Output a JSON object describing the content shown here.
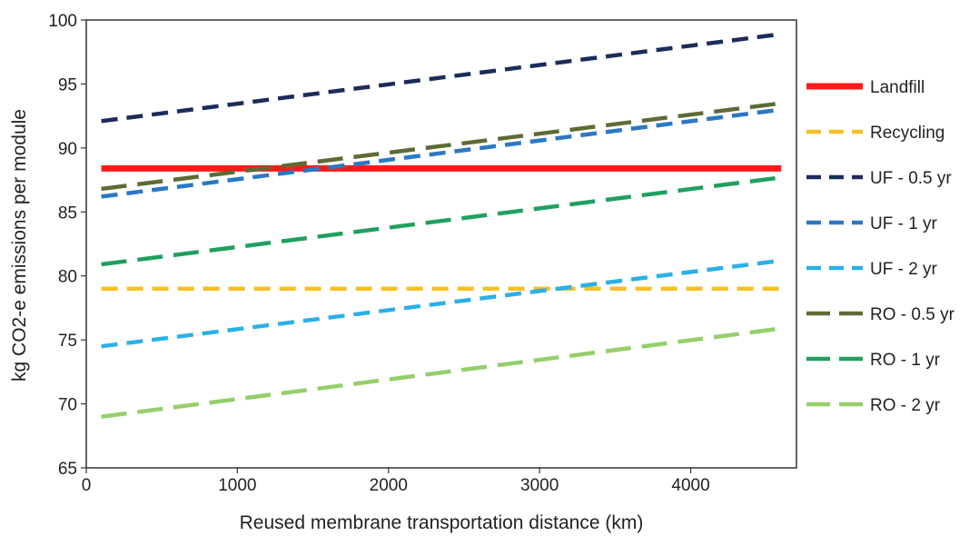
{
  "chart_data": {
    "type": "line",
    "title": "",
    "xlabel": "Reused membrane transportation distance (km)",
    "ylabel": "kg CO2-e emissions per module",
    "xlim": [
      0,
      4700
    ],
    "ylim": [
      65,
      100
    ],
    "x_ticks": [
      0,
      1000,
      2000,
      3000,
      4000
    ],
    "y_ticks": [
      65,
      70,
      75,
      80,
      85,
      90,
      95,
      100
    ],
    "grid": false,
    "legend_position": "right",
    "series": [
      {
        "name": "Landfill",
        "color": "#ff1a1a",
        "style": "solid",
        "points": [
          [
            100,
            88.4
          ],
          [
            4600,
            88.4
          ]
        ]
      },
      {
        "name": "Recycling",
        "color": "#f5c023",
        "style": "dash",
        "points": [
          [
            100,
            79.0
          ],
          [
            4600,
            79.0
          ]
        ]
      },
      {
        "name": "UF - 0.5 yr",
        "color": "#1c2c5a",
        "style": "dash",
        "points": [
          [
            100,
            92.1
          ],
          [
            4600,
            98.9
          ]
        ]
      },
      {
        "name": "UF - 1 yr",
        "color": "#2b78c4",
        "style": "dash",
        "points": [
          [
            100,
            86.2
          ],
          [
            4600,
            93.0
          ]
        ]
      },
      {
        "name": "UF - 2 yr",
        "color": "#2ab0e6",
        "style": "dash",
        "points": [
          [
            100,
            74.5
          ],
          [
            4600,
            81.2
          ]
        ]
      },
      {
        "name": "RO - 0.5 yr",
        "color": "#5d6b34",
        "style": "longdash",
        "points": [
          [
            100,
            86.8
          ],
          [
            4600,
            93.5
          ]
        ]
      },
      {
        "name": "RO - 1 yr",
        "color": "#1fa060",
        "style": "longdash",
        "points": [
          [
            100,
            80.9
          ],
          [
            4600,
            87.7
          ]
        ]
      },
      {
        "name": "RO - 2 yr",
        "color": "#94cf6a",
        "style": "longdash",
        "points": [
          [
            100,
            69.0
          ],
          [
            4600,
            75.9
          ]
        ]
      }
    ]
  }
}
